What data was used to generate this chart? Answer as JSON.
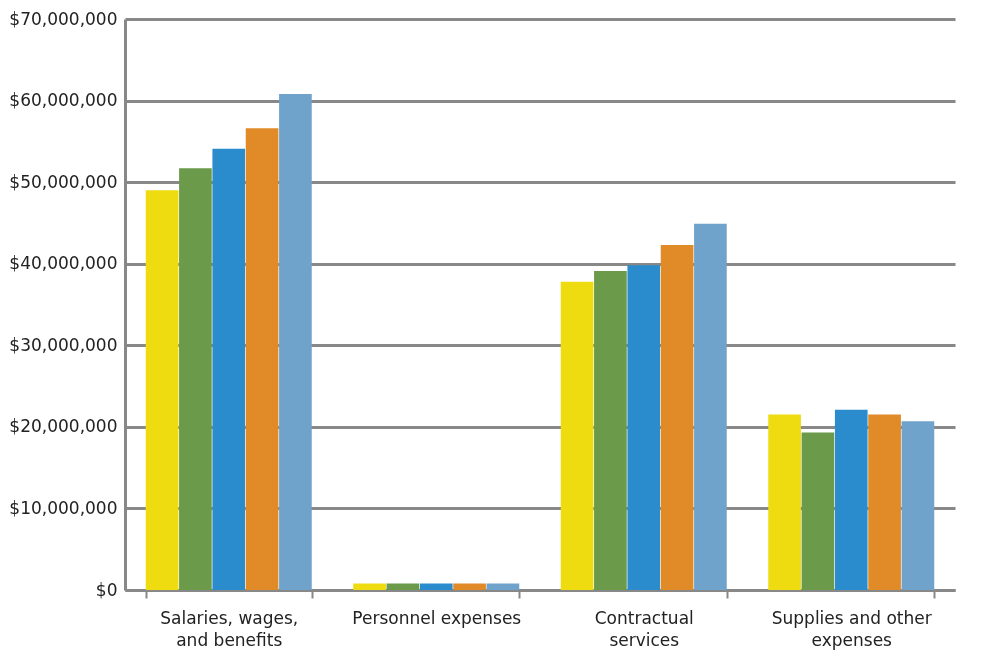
{
  "chart_data": {
    "type": "bar",
    "categories": [
      "Salaries, wages, and benefits",
      "Personnel expenses",
      "Contractual services",
      "Supplies and other expenses"
    ],
    "series": [
      {
        "color": "#eedc10",
        "values": [
          49000000,
          800000,
          37800000,
          21500000
        ]
      },
      {
        "color": "#6a9a4a",
        "values": [
          51700000,
          800000,
          39100000,
          19300000
        ]
      },
      {
        "color": "#2a8ccc",
        "values": [
          54100000,
          800000,
          39800000,
          22100000
        ]
      },
      {
        "color": "#e08a28",
        "values": [
          56600000,
          800000,
          42300000,
          21500000
        ]
      },
      {
        "color": "#6fa3cc",
        "values": [
          60800000,
          800000,
          44900000,
          20700000
        ]
      }
    ],
    "ylim": [
      0,
      70000000
    ],
    "yticks": [
      {
        "value": 0,
        "label": "$0"
      },
      {
        "value": 10000000,
        "label": "$10,000,000"
      },
      {
        "value": 20000000,
        "label": "$20,000,000"
      },
      {
        "value": 30000000,
        "label": "$30,000,000"
      },
      {
        "value": 40000000,
        "label": "$40,000,000"
      },
      {
        "value": 50000000,
        "label": "$50,000,000"
      },
      {
        "value": 60000000,
        "label": "$60,000,000"
      },
      {
        "value": 70000000,
        "label": "$70,000,000"
      }
    ],
    "grid": "y",
    "legend": false
  }
}
